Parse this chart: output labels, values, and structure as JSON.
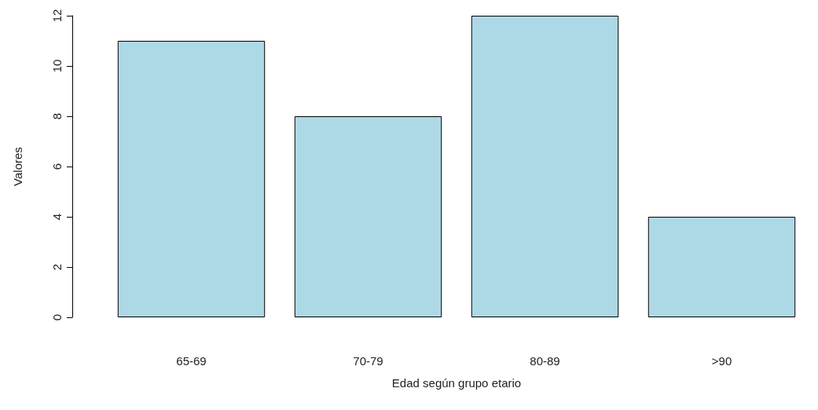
{
  "chart_data": {
    "type": "bar",
    "xlabel": "Edad según grupo etario",
    "ylabel": "Valores",
    "categories": [
      "65-69",
      "70-79",
      "80-89",
      ">90"
    ],
    "values": [
      11,
      8,
      12,
      4
    ],
    "color": "#add8e6",
    "ylim": [
      0,
      12
    ],
    "yticks": [
      0,
      2,
      4,
      6,
      8,
      10,
      12
    ],
    "grid": false
  }
}
